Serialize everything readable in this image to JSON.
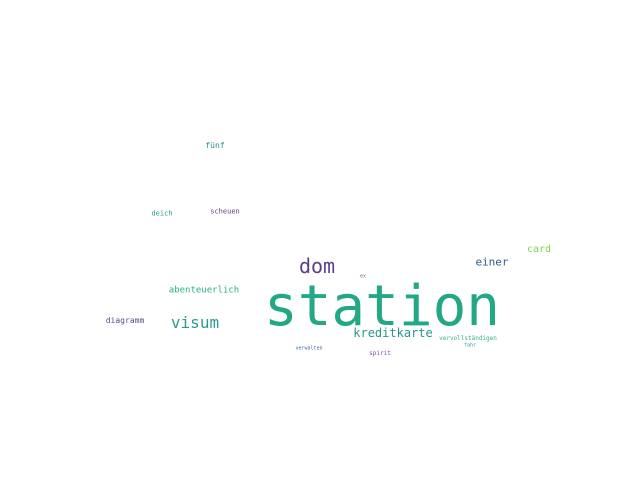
{
  "word_cloud": {
    "words": [
      {
        "id": "station",
        "text": "station",
        "color": "#22a884"
      },
      {
        "id": "dom",
        "text": "dom",
        "color": "#5b3f88"
      },
      {
        "id": "visum",
        "text": "visum",
        "color": "#2a9d8f"
      },
      {
        "id": "kreditkarte",
        "text": "kreditkarte",
        "color": "#27968a"
      },
      {
        "id": "einer",
        "text": "einer",
        "color": "#2c5d8a"
      },
      {
        "id": "card",
        "text": "card",
        "color": "#7ed34e"
      },
      {
        "id": "abenteuerlich",
        "text": "abenteuerlich",
        "color": "#2bb07f"
      },
      {
        "id": "diagramm",
        "text": "diagramm",
        "color": "#5a4a8a"
      },
      {
        "id": "fuenf",
        "text": "fünf",
        "color": "#2a8a8a"
      },
      {
        "id": "deich",
        "text": "deich",
        "color": "#2a9a8f"
      },
      {
        "id": "scheuen",
        "text": "scheuen",
        "color": "#6a3a8a"
      },
      {
        "id": "vervollstaendigen",
        "text": "vervollständigen",
        "color": "#3ab08a"
      },
      {
        "id": "spirit",
        "text": "spirit",
        "color": "#7a4a9a"
      },
      {
        "id": "verwalten",
        "text": "verwalten",
        "color": "#3a6aa0"
      },
      {
        "id": "fahr",
        "text": "fahr",
        "color": "#3a9a9a"
      },
      {
        "id": "ex",
        "text": "ex",
        "color": "#5a6aa0"
      }
    ]
  }
}
